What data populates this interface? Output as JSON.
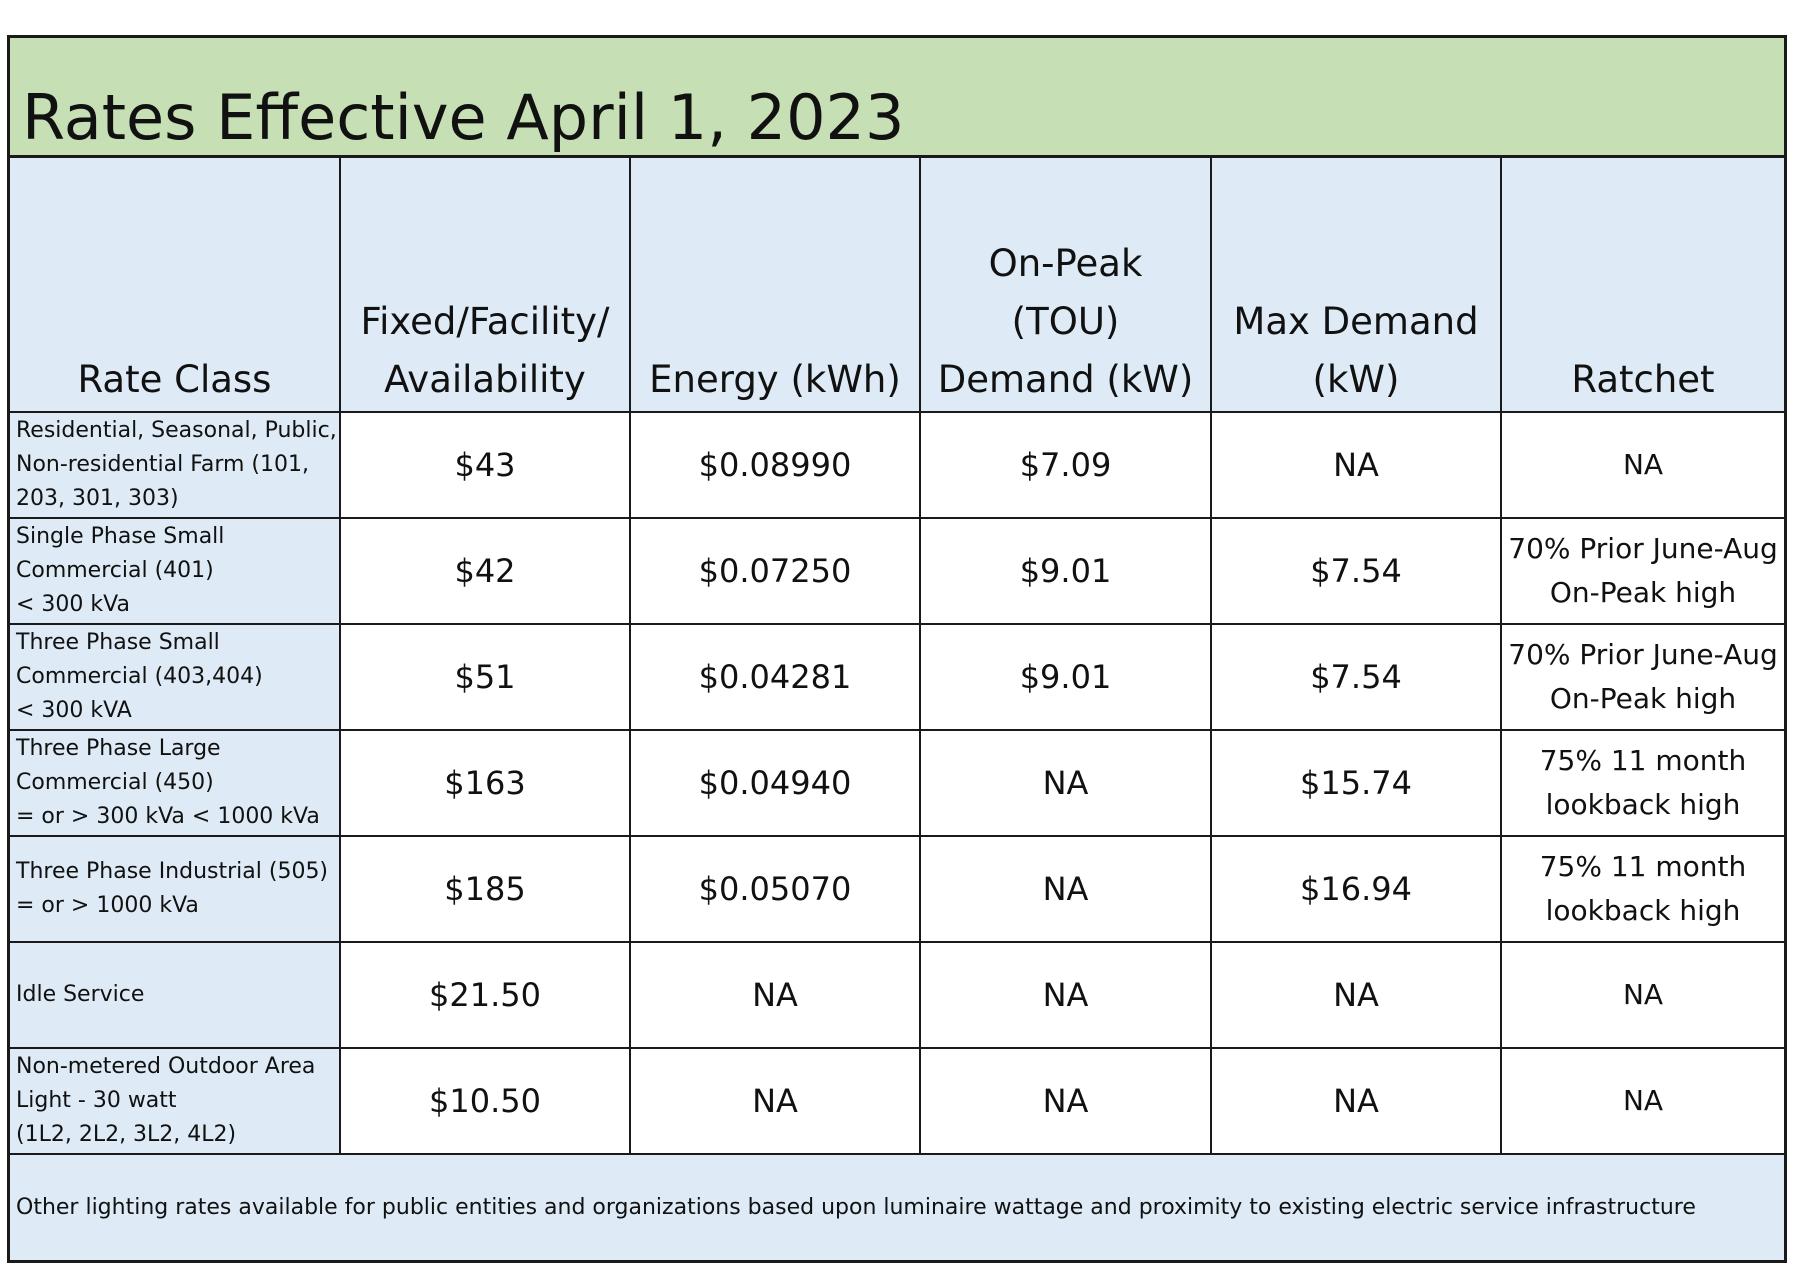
{
  "title": "Rates Effective April 1, 2023",
  "headers": [
    "Rate Class",
    "Fixed/Facility/\nAvailability",
    "Energy (kWh)",
    "On-Peak\n(TOU)\nDemand (kW)",
    "Max Demand\n(kW)",
    "Ratchet"
  ],
  "rows": [
    {
      "rate_class": "Residential, Seasonal, Public,\nNon-residential Farm (101,\n203, 301, 303)",
      "fixed": "$43",
      "energy": "$0.08990",
      "on_peak": "$7.09",
      "max_demand": "NA",
      "ratchet": "NA"
    },
    {
      "rate_class": "Single Phase Small\nCommercial (401)\n< 300 kVa",
      "fixed": "$42",
      "energy": "$0.07250",
      "on_peak": "$9.01",
      "max_demand": "$7.54",
      "ratchet": "70% Prior June-Aug\nOn-Peak high"
    },
    {
      "rate_class": "Three Phase Small\nCommercial (403,404)\n< 300 kVA",
      "fixed": "$51",
      "energy": "$0.04281",
      "on_peak": "$9.01",
      "max_demand": "$7.54",
      "ratchet": "70% Prior June-Aug\nOn-Peak high"
    },
    {
      "rate_class": "Three Phase Large\nCommercial (450)\n= or > 300 kVa < 1000 kVa",
      "fixed": "$163",
      "energy": "$0.04940",
      "on_peak": "NA",
      "max_demand": "$15.74",
      "ratchet": "75%  11 month\nlookback high"
    },
    {
      "rate_class": "Three Phase Industrial (505)\n= or > 1000 kVa",
      "fixed": "$185",
      "energy": "$0.05070",
      "on_peak": "NA",
      "max_demand": "$16.94",
      "ratchet": "75%  11 month\nlookback high"
    },
    {
      "rate_class": "Idle Service",
      "fixed": "$21.50",
      "energy": "NA",
      "on_peak": "NA",
      "max_demand": "NA",
      "ratchet": "NA"
    },
    {
      "rate_class": "Non-metered Outdoor Area\nLight - 30 watt\n(1L2, 2L2, 3L2, 4L2)",
      "fixed": "$10.50",
      "energy": "NA",
      "on_peak": "NA",
      "max_demand": "NA",
      "ratchet": "NA"
    }
  ],
  "footnote": "Other lighting rates available for public entities and organizations based upon luminaire wattage and proximity to existing electric service infrastructure",
  "colors": {
    "title_bg": "#c6dfb4",
    "header_bg": "#deebf6",
    "border": "#1a1a1a"
  }
}
